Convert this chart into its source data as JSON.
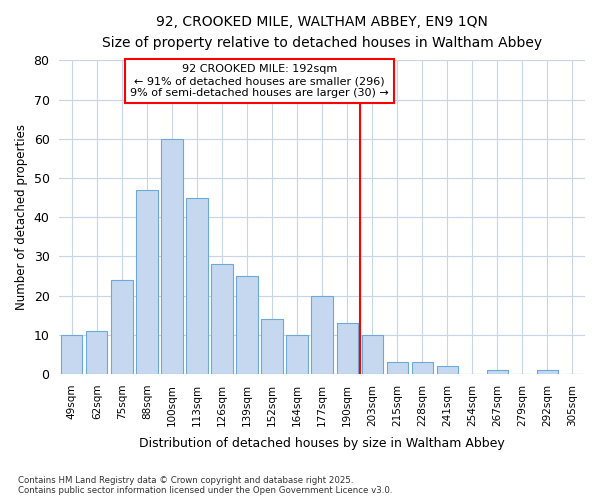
{
  "title1": "92, CROOKED MILE, WALTHAM ABBEY, EN9 1QN",
  "title2": "Size of property relative to detached houses in Waltham Abbey",
  "xlabel": "Distribution of detached houses by size in Waltham Abbey",
  "ylabel": "Number of detached properties",
  "categories": [
    "49sqm",
    "62sqm",
    "75sqm",
    "88sqm",
    "100sqm",
    "113sqm",
    "126sqm",
    "139sqm",
    "152sqm",
    "164sqm",
    "177sqm",
    "190sqm",
    "203sqm",
    "215sqm",
    "228sqm",
    "241sqm",
    "254sqm",
    "267sqm",
    "279sqm",
    "292sqm",
    "305sqm"
  ],
  "values": [
    10,
    11,
    24,
    47,
    60,
    45,
    28,
    25,
    14,
    10,
    20,
    13,
    10,
    3,
    3,
    2,
    0,
    1,
    0,
    1,
    0
  ],
  "bar_color": "#c5d8f0",
  "bar_edge_color": "#6aaad4",
  "vline_x_index": 11.5,
  "vline_color": "red",
  "annotation_text": "92 CROOKED MILE: 192sqm\n← 91% of detached houses are smaller (296)\n9% of semi-detached houses are larger (30) →",
  "annotation_box_color": "white",
  "annotation_box_edge": "red",
  "ylim": [
    0,
    80
  ],
  "yticks": [
    0,
    10,
    20,
    30,
    40,
    50,
    60,
    70,
    80
  ],
  "grid_color": "#c8d4e8",
  "bg_color": "#ffffff",
  "plot_bg_color": "#ffffff",
  "footnote": "Contains HM Land Registry data © Crown copyright and database right 2025.\nContains public sector information licensed under the Open Government Licence v3.0.",
  "bar_width": 0.85
}
